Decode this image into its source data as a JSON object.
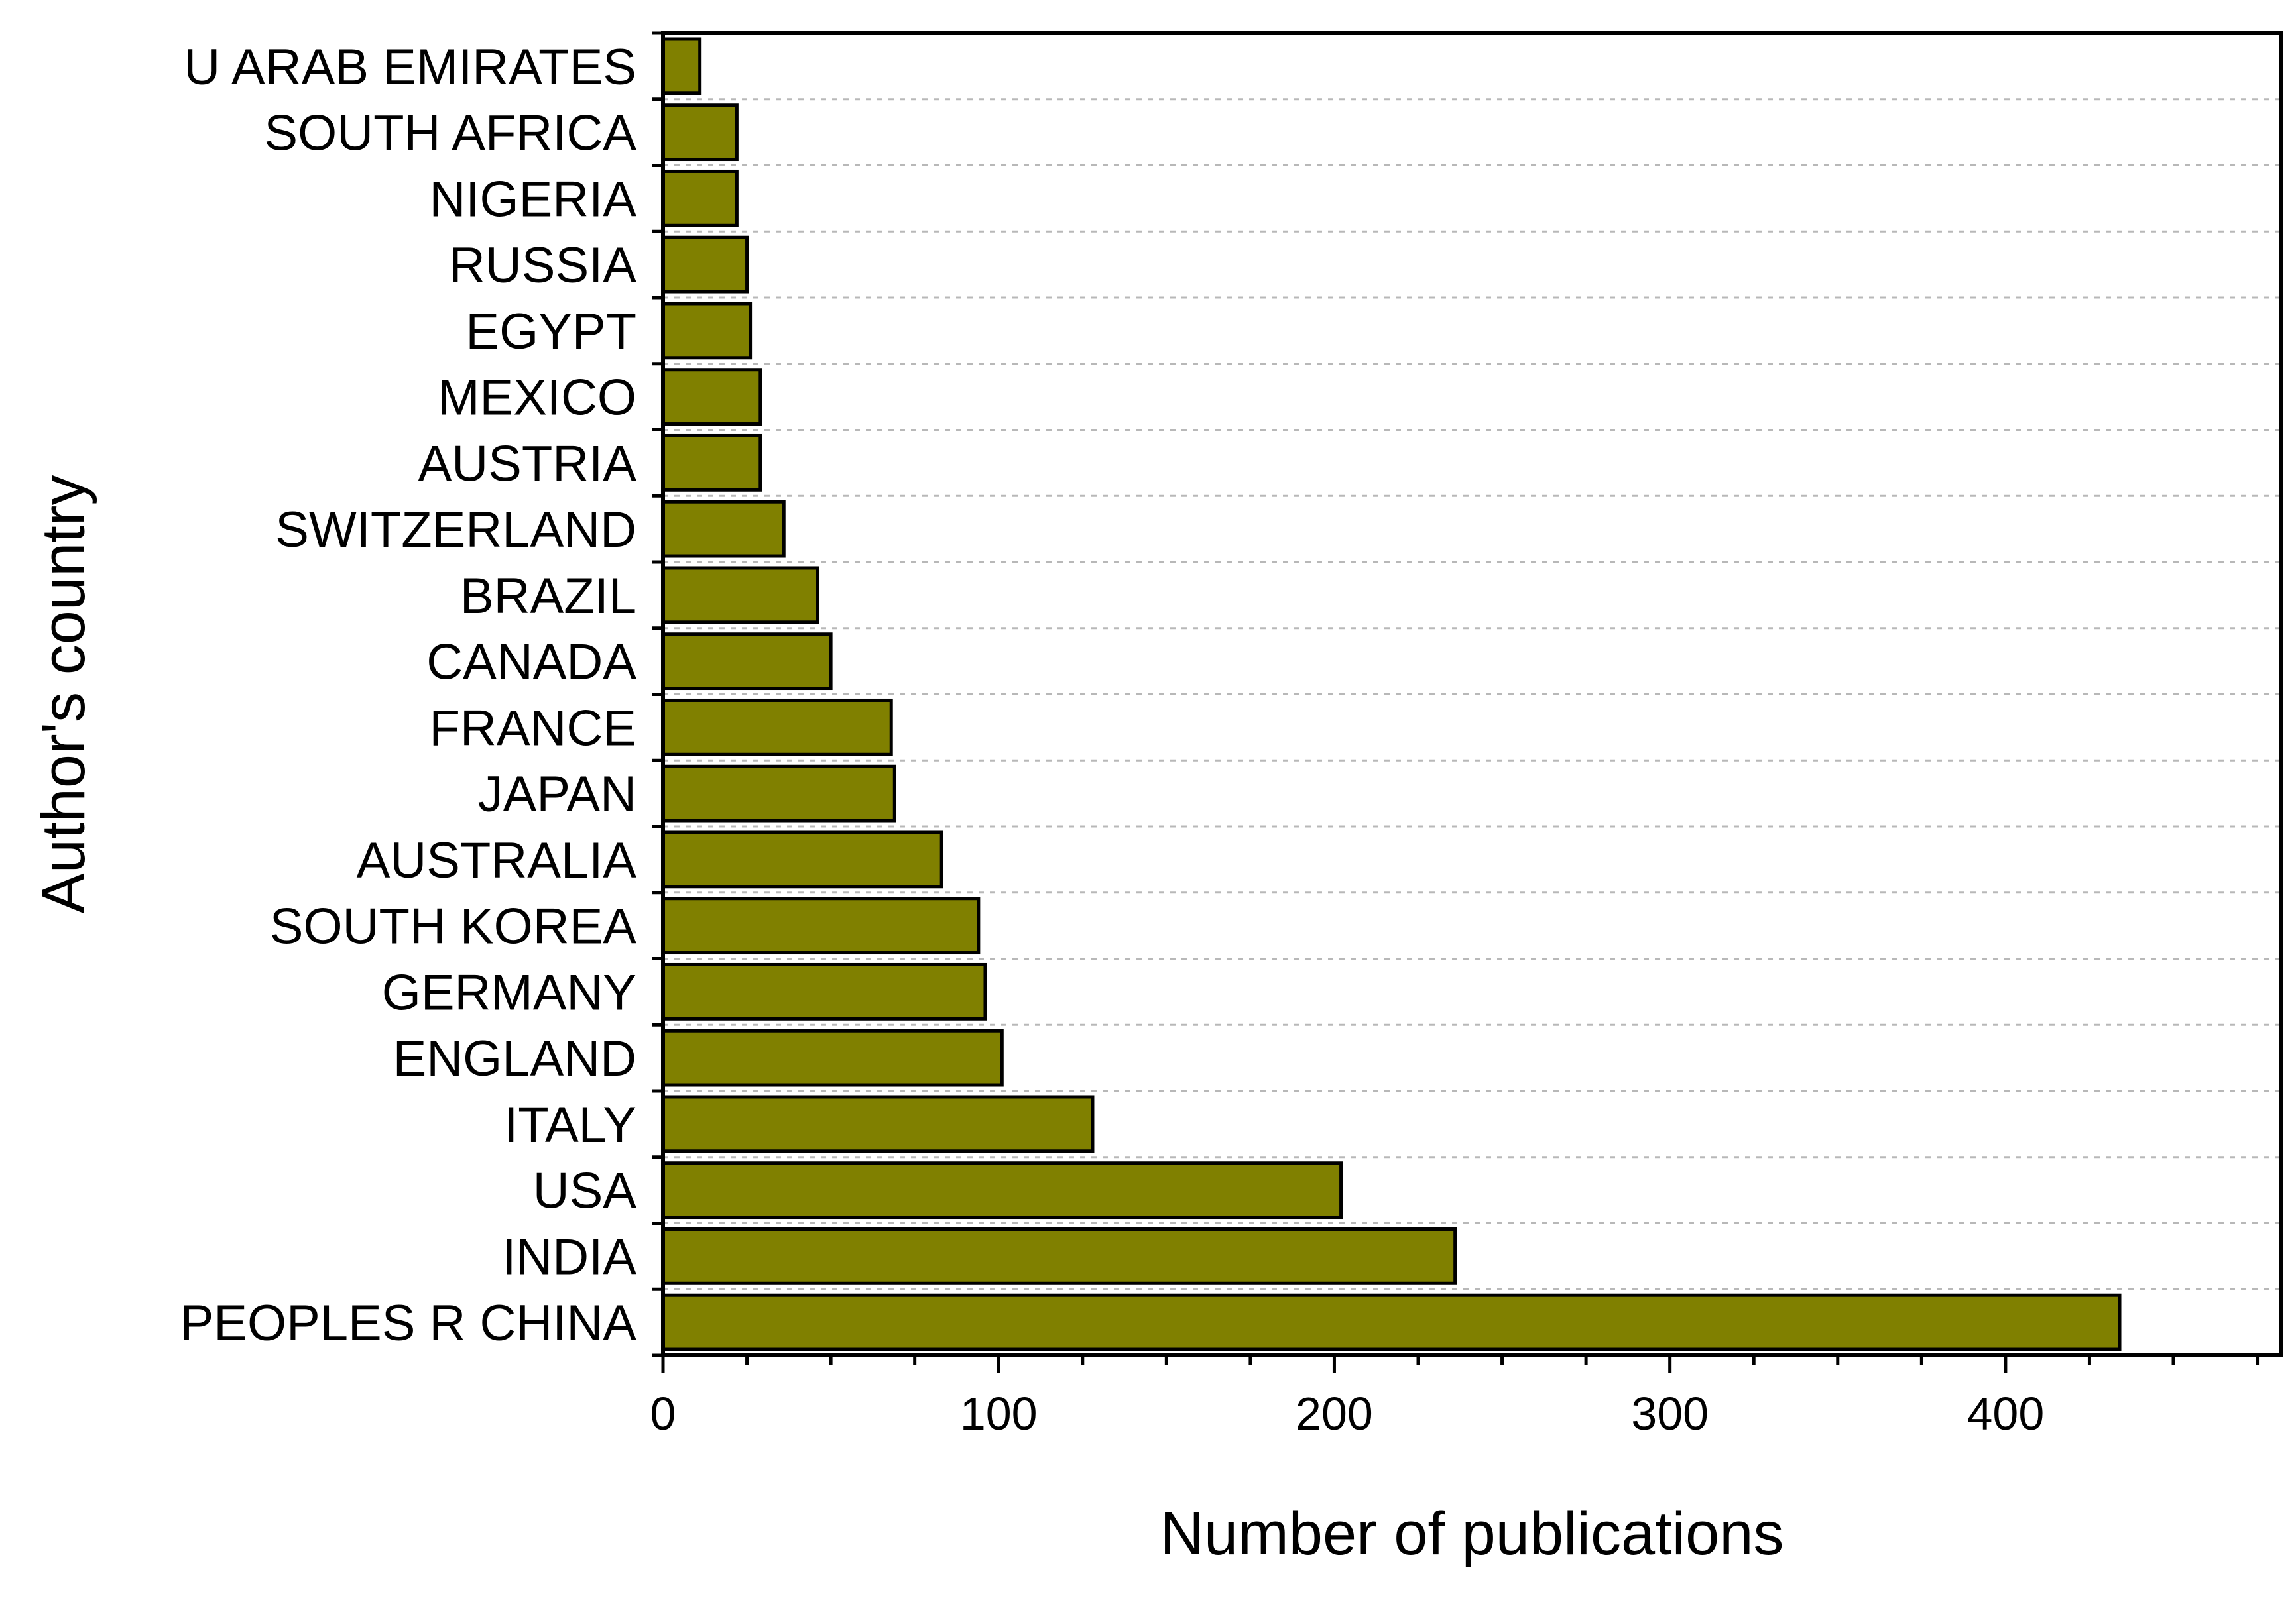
{
  "chart_data": {
    "type": "bar",
    "orientation": "horizontal",
    "categories": [
      "PEOPLES R CHINA",
      "INDIA",
      "USA",
      "ITALY",
      "ENGLAND",
      "GERMANY",
      "SOUTH KOREA",
      "AUSTRALIA",
      "JAPAN",
      "FRANCE",
      "CANADA",
      "BRAZIL",
      "SWITZERLAND",
      "AUSTRIA",
      "MEXICO",
      "EGYPT",
      "RUSSIA",
      "NIGERIA",
      "SOUTH AFRICA",
      "U ARAB EMIRATES"
    ],
    "values": [
      434,
      236,
      202,
      128,
      101,
      96,
      94,
      83,
      69,
      68,
      50,
      46,
      36,
      29,
      29,
      26,
      25,
      22,
      22,
      11
    ],
    "xlabel": "Number of publications",
    "ylabel": "Author's country",
    "xlim": [
      0,
      482
    ],
    "x_ticks": [
      0,
      100,
      200,
      300,
      400
    ],
    "x_minor_step": 25,
    "grid": "horizontal dotted",
    "bar_color": "#808000",
    "grid_color": "#b8b8b8"
  }
}
